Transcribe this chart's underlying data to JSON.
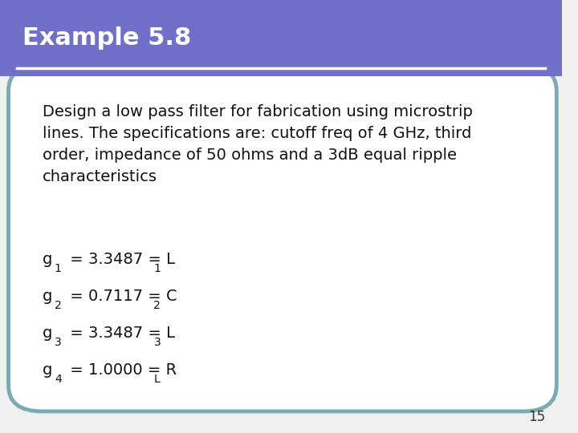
{
  "title": "Example 5.8",
  "title_bg_color": "#7070c8",
  "title_text_color": "#ffffff",
  "title_font_size": 22,
  "separator_color": "#ffffff",
  "body_bg_color": "#ffffff",
  "box_border_color": "#7aabb0",
  "page_number": "15",
  "page_number_color": "#333333",
  "body_text": "Design a low pass filter for fabrication using microstrip\nlines. The specifications are: cutoff freq of 4 GHz, third\norder, impedance of 50 ohms and a 3dB equal ripple\ncharacteristics",
  "body_font_size": 14,
  "equations": [
    {
      "prefix": "g",
      "sub": "1",
      "value": "= 3.3487 = L",
      "var_sub": "1"
    },
    {
      "prefix": "g",
      "sub": "2",
      "value": "= 0.7117 = C",
      "var_sub": "2"
    },
    {
      "prefix": "g",
      "sub": "3",
      "value": "= 3.3487 = L",
      "var_sub": "3"
    },
    {
      "prefix": "g",
      "sub": "4",
      "value": "= 1.0000 = R",
      "var_sub": "L"
    }
  ],
  "eq_font_size": 14,
  "outer_bg_color": "#f0f0f0"
}
